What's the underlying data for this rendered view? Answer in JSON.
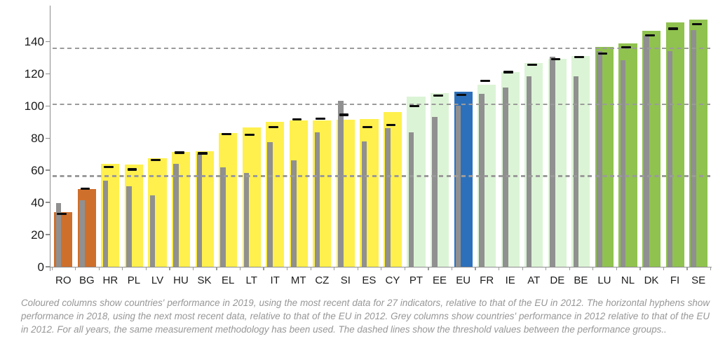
{
  "chart_data": {
    "type": "bar",
    "title": "",
    "footnote": "Coloured columns show countries' performance in 2019, using the most recent data for 27 indicators, relative to that of the EU in 2012. The horizontal hyphens show performance in 2018, using the next most recent data, relative to that of the EU in 2012. Grey columns show countries' performance in 2012 relative to that of the EU in 2012. For all years, the same measurement methodology has been used. The dashed lines show the threshold values between the performance groups..",
    "xlabel": "",
    "ylabel": "",
    "ylim": [
      0,
      160
    ],
    "yticks": [
      0,
      20,
      40,
      60,
      80,
      100,
      120,
      140
    ],
    "grid": false,
    "legend": "none",
    "threshold_lines": [
      56.5,
      101,
      135.8
    ],
    "series": [
      {
        "name": "Performance 2019",
        "style": "coloured column"
      },
      {
        "name": "Performance 2018",
        "style": "horizontal hyphen"
      },
      {
        "name": "Performance 2012",
        "style": "grey column"
      }
    ],
    "group_colors": {
      "modest": "#CE6F2C",
      "moderate": "#FFF04D",
      "strong": "#DCF4D6",
      "leader": "#90C24F",
      "eu": "#2C70BB"
    },
    "grey_color": "#909090",
    "hyphen_color": "#0d0d0d",
    "axis_color": "#8c8c8c",
    "threshold_color": "#9b9b9b",
    "countries": [
      {
        "code": "RO",
        "group": "modest",
        "v2019": 34,
        "v2018": 33,
        "v2012": 39.5
      },
      {
        "code": "BG",
        "group": "modest",
        "v2019": 48.5,
        "v2018": 48.5,
        "v2012": 41.5
      },
      {
        "code": "HR",
        "group": "moderate",
        "v2019": 64,
        "v2018": 62,
        "v2012": 53.5
      },
      {
        "code": "PL",
        "group": "moderate",
        "v2019": 63.5,
        "v2018": 60.5,
        "v2012": 50
      },
      {
        "code": "LV",
        "group": "moderate",
        "v2019": 67.5,
        "v2018": 66.5,
        "v2012": 44.5
      },
      {
        "code": "HU",
        "group": "moderate",
        "v2019": 71.5,
        "v2018": 71,
        "v2012": 64
      },
      {
        "code": "SK",
        "group": "moderate",
        "v2019": 72,
        "v2018": 70.5,
        "v2012": 70
      },
      {
        "code": "EL",
        "group": "moderate",
        "v2019": 83,
        "v2018": 82.5,
        "v2012": 62
      },
      {
        "code": "LT",
        "group": "moderate",
        "v2019": 86.5,
        "v2018": 82,
        "v2012": 58.5
      },
      {
        "code": "IT",
        "group": "moderate",
        "v2019": 90,
        "v2018": 87,
        "v2012": 77.5
      },
      {
        "code": "MT",
        "group": "moderate",
        "v2019": 91,
        "v2018": 91.5,
        "v2012": 66
      },
      {
        "code": "CZ",
        "group": "moderate",
        "v2019": 91,
        "v2018": 92,
        "v2012": 83.5
      },
      {
        "code": "SI",
        "group": "moderate",
        "v2019": 91.5,
        "v2018": 94.5,
        "v2012": 103
      },
      {
        "code": "ES",
        "group": "moderate",
        "v2019": 92,
        "v2018": 87,
        "v2012": 78
      },
      {
        "code": "CY",
        "group": "moderate",
        "v2019": 96,
        "v2018": 88,
        "v2012": 86
      },
      {
        "code": "PT",
        "group": "strong",
        "v2019": 106,
        "v2018": 100,
        "v2012": 83.5
      },
      {
        "code": "EE",
        "group": "strong",
        "v2019": 108,
        "v2018": 106.5,
        "v2012": 93
      },
      {
        "code": "EU",
        "group": "eu",
        "v2019": 108.9,
        "v2018": 107,
        "v2012": 100
      },
      {
        "code": "FR",
        "group": "strong",
        "v2019": 113,
        "v2018": 115.5,
        "v2012": 107.5
      },
      {
        "code": "IE",
        "group": "strong",
        "v2019": 121,
        "v2018": 121,
        "v2012": 111.5
      },
      {
        "code": "AT",
        "group": "strong",
        "v2019": 126.5,
        "v2018": 125.5,
        "v2012": 118.5
      },
      {
        "code": "DE",
        "group": "strong",
        "v2019": 129.5,
        "v2018": 129,
        "v2012": 130.5
      },
      {
        "code": "BE",
        "group": "strong",
        "v2019": 131,
        "v2018": 130.5,
        "v2012": 118.5
      },
      {
        "code": "LU",
        "group": "leader",
        "v2019": 136.5,
        "v2018": 132.5,
        "v2012": 134
      },
      {
        "code": "NL",
        "group": "leader",
        "v2019": 139,
        "v2018": 136.5,
        "v2012": 128.5
      },
      {
        "code": "DK",
        "group": "leader",
        "v2019": 146.5,
        "v2018": 144,
        "v2012": 143.5
      },
      {
        "code": "FI",
        "group": "leader",
        "v2019": 152,
        "v2018": 148,
        "v2012": 134
      },
      {
        "code": "SE",
        "group": "leader",
        "v2019": 153.5,
        "v2018": 151,
        "v2012": 147
      }
    ]
  }
}
